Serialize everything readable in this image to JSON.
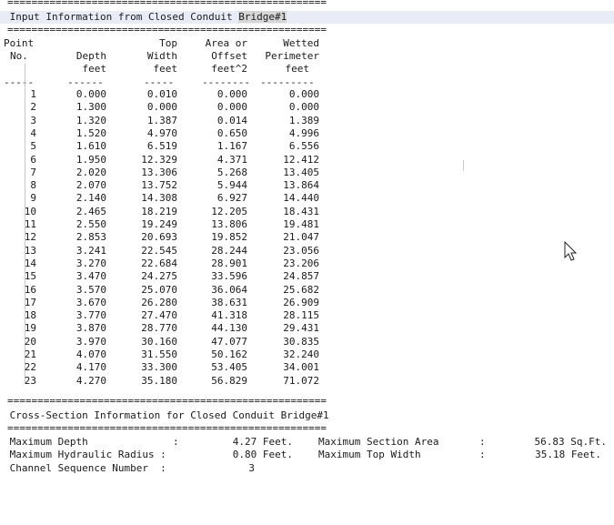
{
  "separator": "=====================================================",
  "input_section": {
    "title_prefix": " Input Information from Closed Conduit ",
    "title_selected": "Bridge#1"
  },
  "headers": {
    "row1": [
      "Point",
      "Top",
      "Area or",
      "Wetted"
    ],
    "row2": [
      "No.",
      "Depth",
      "Width",
      "Offset",
      "Perimeter"
    ],
    "row3": [
      "feet",
      "feet",
      "feet^2",
      "feet"
    ],
    "dashes": [
      "-----",
      "------",
      "-----",
      "--------",
      "---------"
    ]
  },
  "rows": [
    [
      "1",
      "0.000",
      "0.010",
      "0.000",
      "0.000"
    ],
    [
      "2",
      "1.300",
      "0.000",
      "0.000",
      "0.000"
    ],
    [
      "3",
      "1.320",
      "1.387",
      "0.014",
      "1.389"
    ],
    [
      "4",
      "1.520",
      "4.970",
      "0.650",
      "4.996"
    ],
    [
      "5",
      "1.610",
      "6.519",
      "1.167",
      "6.556"
    ],
    [
      "6",
      "1.950",
      "12.329",
      "4.371",
      "12.412"
    ],
    [
      "7",
      "2.020",
      "13.306",
      "5.268",
      "13.405"
    ],
    [
      "8",
      "2.070",
      "13.752",
      "5.944",
      "13.864"
    ],
    [
      "9",
      "2.140",
      "14.308",
      "6.927",
      "14.440"
    ],
    [
      "10",
      "2.465",
      "18.219",
      "12.205",
      "18.431"
    ],
    [
      "11",
      "2.550",
      "19.249",
      "13.806",
      "19.481"
    ],
    [
      "12",
      "2.853",
      "20.693",
      "19.852",
      "21.047"
    ],
    [
      "13",
      "3.241",
      "22.545",
      "28.244",
      "23.056"
    ],
    [
      "14",
      "3.270",
      "22.684",
      "28.901",
      "23.206"
    ],
    [
      "15",
      "3.470",
      "24.275",
      "33.596",
      "24.857"
    ],
    [
      "16",
      "3.570",
      "25.070",
      "36.064",
      "25.682"
    ],
    [
      "17",
      "3.670",
      "26.280",
      "38.631",
      "26.909"
    ],
    [
      "18",
      "3.770",
      "27.470",
      "41.318",
      "28.115"
    ],
    [
      "19",
      "3.870",
      "28.770",
      "44.130",
      "29.431"
    ],
    [
      "20",
      "3.970",
      "30.160",
      "47.077",
      "30.835"
    ],
    [
      "21",
      "4.070",
      "31.550",
      "50.162",
      "32.240"
    ],
    [
      "22",
      "4.170",
      "33.300",
      "53.405",
      "34.001"
    ],
    [
      "23",
      "4.270",
      "35.180",
      "56.829",
      "71.072"
    ]
  ],
  "cross_section": {
    "title": " Cross-Section Information for Closed Conduit Bridge#1",
    "max_depth_label": " Maximum Depth",
    "max_depth_value": "4.27 Feet.",
    "max_section_area_label": "Maximum Section Area",
    "max_section_area_value": "56.83 Sq.Ft.",
    "max_hydraulic_radius_label": " Maximum Hydraulic Radius :",
    "max_hydraulic_radius_value": "0.80 Feet.",
    "max_top_width_label": "Maximum Top Width",
    "max_top_width_value": "35.18 Feet.",
    "channel_sequence_label": " Channel Sequence Number  :",
    "channel_sequence_value": "3",
    "colon": ":"
  }
}
